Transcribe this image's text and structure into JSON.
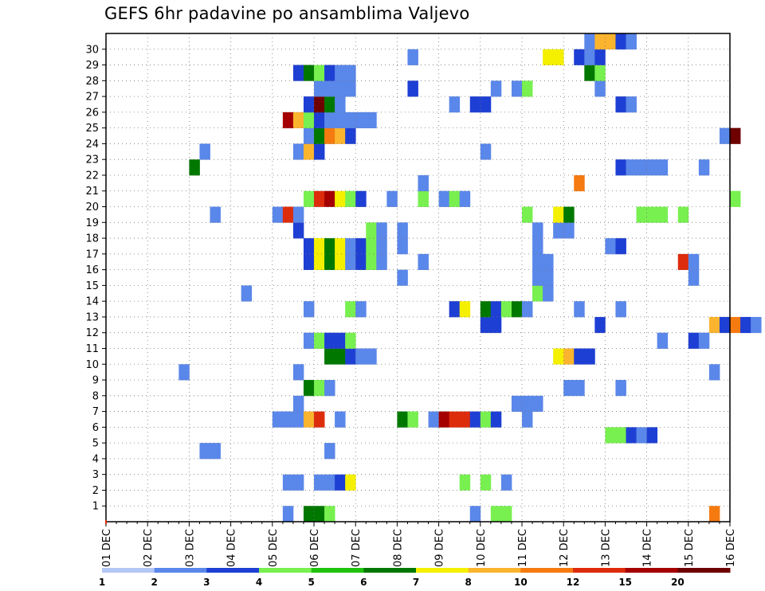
{
  "chart_data": {
    "type": "heatmap",
    "title": "GEFS 6hr padavine po ansamblima Valjevo",
    "xlabel": "",
    "ylabel": "",
    "x_tick_labels": [
      "01 DEC",
      "02 DEC",
      "03 DEC",
      "04 DEC",
      "05 DEC",
      "06 DEC",
      "07 DEC",
      "08 DEC",
      "09 DEC",
      "10 DEC",
      "11 DEC",
      "12 DEC",
      "13 DEC",
      "14 DEC",
      "15 DEC",
      "16 DEC"
    ],
    "y_tick_labels": [
      "1",
      "2",
      "3",
      "4",
      "5",
      "6",
      "7",
      "8",
      "9",
      "10",
      "11",
      "12",
      "13",
      "14",
      "15",
      "16",
      "17",
      "18",
      "19",
      "20",
      "21",
      "22",
      "23",
      "24",
      "25",
      "26",
      "27",
      "28",
      "29",
      "30"
    ],
    "grid": true,
    "legend_position": "bottom",
    "time_axis": {
      "start": "01 DEC",
      "end": "16 DEC",
      "step_hours": 6
    },
    "members": {
      "min": 0,
      "max": 30
    },
    "legend": {
      "thresholds": [
        "1",
        "2",
        "3",
        "4",
        "5",
        "6",
        "7",
        "8",
        "10",
        "12",
        "15",
        "20"
      ],
      "colors": [
        "#b4c7f5",
        "#5a87ea",
        "#1e3fd4",
        "#78f050",
        "#1fc30e",
        "#007800",
        "#f5f000",
        "#fbb42d",
        "#f57a10",
        "#dd2c0c",
        "#a50000",
        "#6e0000"
      ]
    },
    "cells": [
      [
        4.75,
        0,
        5
      ],
      [
        5,
        0,
        5
      ],
      [
        5.25,
        0,
        3
      ],
      [
        8.75,
        0,
        1
      ],
      [
        9.25,
        0,
        3
      ],
      [
        9.5,
        0,
        3
      ],
      [
        14.5,
        0,
        8
      ],
      [
        4.25,
        0,
        1
      ],
      [
        4.25,
        2,
        1
      ],
      [
        4.5,
        2,
        1
      ],
      [
        5,
        2,
        1
      ],
      [
        5.25,
        2,
        1
      ],
      [
        5.5,
        2,
        2
      ],
      [
        5.75,
        2,
        6
      ],
      [
        8.5,
        2,
        3
      ],
      [
        9,
        2,
        3
      ],
      [
        9.5,
        2,
        1
      ],
      [
        5.25,
        4,
        1
      ],
      [
        2.25,
        4,
        1
      ],
      [
        2.5,
        4,
        1
      ],
      [
        12,
        5,
        3
      ],
      [
        12.25,
        5,
        3
      ],
      [
        12.5,
        5,
        2
      ],
      [
        12.75,
        5,
        1
      ],
      [
        13,
        5,
        2
      ],
      [
        4,
        6,
        1
      ],
      [
        4.25,
        6,
        1
      ],
      [
        4.5,
        6,
        1
      ],
      [
        4.75,
        6,
        7
      ],
      [
        5,
        6,
        9
      ],
      [
        5.5,
        6,
        1
      ],
      [
        7,
        6,
        5
      ],
      [
        7.25,
        6,
        3
      ],
      [
        7.75,
        6,
        1
      ],
      [
        8,
        6,
        10
      ],
      [
        8.25,
        6,
        9
      ],
      [
        8.5,
        6,
        9
      ],
      [
        8.75,
        6,
        2
      ],
      [
        9,
        6,
        3
      ],
      [
        9.25,
        6,
        2
      ],
      [
        10,
        6,
        1
      ],
      [
        4.5,
        7,
        1
      ],
      [
        9.75,
        7,
        1
      ],
      [
        10,
        7,
        1
      ],
      [
        10.25,
        7,
        1
      ],
      [
        4.75,
        8,
        5
      ],
      [
        5,
        8,
        3
      ],
      [
        5.25,
        8,
        1
      ],
      [
        11,
        8,
        1
      ],
      [
        11.25,
        8,
        1
      ],
      [
        12.25,
        8,
        1
      ],
      [
        4.5,
        9,
        1
      ],
      [
        14.5,
        9,
        1
      ],
      [
        1.75,
        9,
        1
      ],
      [
        5.25,
        10,
        5
      ],
      [
        5.5,
        10,
        5
      ],
      [
        5.75,
        10,
        2
      ],
      [
        6,
        10,
        1
      ],
      [
        6.25,
        10,
        1
      ],
      [
        10.75,
        10,
        6
      ],
      [
        11,
        10,
        7
      ],
      [
        11.25,
        10,
        2
      ],
      [
        11.5,
        10,
        2
      ],
      [
        4.75,
        11,
        1
      ],
      [
        5,
        11,
        3
      ],
      [
        5.25,
        11,
        2
      ],
      [
        5.5,
        11,
        2
      ],
      [
        5.75,
        11,
        3
      ],
      [
        13.25,
        11,
        1
      ],
      [
        14,
        11,
        2
      ],
      [
        14.25,
        11,
        1
      ],
      [
        9,
        12,
        2
      ],
      [
        9.25,
        12,
        2
      ],
      [
        11.75,
        12,
        2
      ],
      [
        14.5,
        12,
        7
      ],
      [
        14.75,
        12,
        2
      ],
      [
        15,
        12,
        8
      ],
      [
        15.25,
        12,
        2
      ],
      [
        15.5,
        12,
        1
      ],
      [
        4.75,
        13,
        1
      ],
      [
        5.75,
        13,
        3
      ],
      [
        6,
        13,
        1
      ],
      [
        8.25,
        13,
        2
      ],
      [
        8.5,
        13,
        6
      ],
      [
        9,
        13,
        5
      ],
      [
        9.25,
        13,
        2
      ],
      [
        9.5,
        13,
        3
      ],
      [
        9.75,
        13,
        5
      ],
      [
        10,
        13,
        1
      ],
      [
        11.25,
        13,
        1
      ],
      [
        12.25,
        13,
        1
      ],
      [
        3.25,
        14,
        1
      ],
      [
        10.25,
        14,
        3
      ],
      [
        10.5,
        14,
        1
      ],
      [
        7,
        15,
        1
      ],
      [
        10.25,
        15,
        1
      ],
      [
        10.5,
        15,
        1
      ],
      [
        14,
        15,
        1
      ],
      [
        4.75,
        16,
        2
      ],
      [
        5,
        16,
        6
      ],
      [
        5.25,
        16,
        5
      ],
      [
        5.5,
        16,
        6
      ],
      [
        5.75,
        16,
        1
      ],
      [
        6,
        16,
        2
      ],
      [
        6.25,
        16,
        3
      ],
      [
        6.5,
        16,
        1
      ],
      [
        7.5,
        16,
        1
      ],
      [
        10.25,
        16,
        1
      ],
      [
        10.5,
        16,
        1
      ],
      [
        13.75,
        16,
        9
      ],
      [
        14,
        16,
        1
      ],
      [
        4.75,
        17,
        2
      ],
      [
        5,
        17,
        6
      ],
      [
        5.25,
        17,
        5
      ],
      [
        5.5,
        17,
        6
      ],
      [
        5.75,
        17,
        1
      ],
      [
        6,
        17,
        2
      ],
      [
        6.25,
        17,
        3
      ],
      [
        6.5,
        17,
        1
      ],
      [
        7,
        17,
        1
      ],
      [
        10.25,
        17,
        1
      ],
      [
        12,
        17,
        1
      ],
      [
        12.25,
        17,
        2
      ],
      [
        4.5,
        18,
        2
      ],
      [
        6.25,
        18,
        3
      ],
      [
        6.5,
        18,
        1
      ],
      [
        7,
        18,
        1
      ],
      [
        10.25,
        18,
        1
      ],
      [
        10.75,
        18,
        1
      ],
      [
        11,
        18,
        1
      ],
      [
        2.5,
        19,
        1
      ],
      [
        4,
        19,
        1
      ],
      [
        4.25,
        19,
        9
      ],
      [
        4.5,
        19,
        1
      ],
      [
        10,
        19,
        3
      ],
      [
        10.75,
        19,
        6
      ],
      [
        11,
        19,
        5
      ],
      [
        12.75,
        19,
        3
      ],
      [
        13,
        19,
        3
      ],
      [
        13.25,
        19,
        3
      ],
      [
        13.75,
        19,
        3
      ],
      [
        4.75,
        20,
        3
      ],
      [
        5,
        20,
        9
      ],
      [
        5.25,
        20,
        10
      ],
      [
        5.5,
        20,
        6
      ],
      [
        5.75,
        20,
        3
      ],
      [
        6,
        20,
        2
      ],
      [
        6.75,
        20,
        1
      ],
      [
        7.5,
        20,
        3
      ],
      [
        8,
        20,
        1
      ],
      [
        8.25,
        20,
        3
      ],
      [
        8.5,
        20,
        1
      ],
      [
        15,
        20,
        3
      ],
      [
        7.5,
        21,
        1
      ],
      [
        11.25,
        21,
        8
      ],
      [
        2,
        22,
        5
      ],
      [
        12.25,
        22,
        2
      ],
      [
        12.5,
        22,
        1
      ],
      [
        12.75,
        22,
        1
      ],
      [
        13,
        22,
        1
      ],
      [
        13.25,
        22,
        1
      ],
      [
        14.25,
        22,
        1
      ],
      [
        2.25,
        23,
        1
      ],
      [
        4.5,
        23,
        1
      ],
      [
        4.75,
        23,
        7
      ],
      [
        5,
        23,
        2
      ],
      [
        9,
        23,
        1
      ],
      [
        4.75,
        24,
        1
      ],
      [
        5,
        24,
        5
      ],
      [
        5.25,
        24,
        8
      ],
      [
        5.5,
        24,
        7
      ],
      [
        5.75,
        24,
        2
      ],
      [
        14.75,
        24,
        1
      ],
      [
        15,
        24,
        11
      ],
      [
        4.25,
        25,
        10
      ],
      [
        4.5,
        25,
        7
      ],
      [
        4.75,
        25,
        3
      ],
      [
        5,
        25,
        2
      ],
      [
        5.25,
        25,
        1
      ],
      [
        5.5,
        25,
        1
      ],
      [
        5.75,
        25,
        1
      ],
      [
        6,
        25,
        1
      ],
      [
        6.25,
        25,
        1
      ],
      [
        4.75,
        26,
        2
      ],
      [
        5,
        26,
        11
      ],
      [
        5.25,
        26,
        5
      ],
      [
        5.5,
        26,
        1
      ],
      [
        8.25,
        26,
        1
      ],
      [
        8.75,
        26,
        2
      ],
      [
        9,
        26,
        2
      ],
      [
        12.25,
        26,
        2
      ],
      [
        12.5,
        26,
        1
      ],
      [
        5,
        27,
        1
      ],
      [
        5.25,
        27,
        1
      ],
      [
        5.5,
        27,
        1
      ],
      [
        5.75,
        27,
        1
      ],
      [
        7.25,
        27,
        2
      ],
      [
        9.25,
        27,
        1
      ],
      [
        9.75,
        27,
        1
      ],
      [
        10,
        27,
        3
      ],
      [
        11.75,
        27,
        1
      ],
      [
        4.5,
        28,
        2
      ],
      [
        4.75,
        28,
        5
      ],
      [
        5,
        28,
        3
      ],
      [
        5.25,
        28,
        2
      ],
      [
        5.5,
        28,
        1
      ],
      [
        5.75,
        28,
        1
      ],
      [
        11.5,
        28,
        5
      ],
      [
        11.75,
        28,
        3
      ],
      [
        7.25,
        29,
        1
      ],
      [
        10.5,
        29,
        6
      ],
      [
        10.75,
        29,
        6
      ],
      [
        11.25,
        29,
        2
      ],
      [
        11.5,
        29,
        1
      ],
      [
        11.75,
        29,
        2
      ],
      [
        11.5,
        30,
        1
      ],
      [
        11.75,
        30,
        7
      ],
      [
        12,
        30,
        7
      ],
      [
        12.25,
        30,
        2
      ],
      [
        12.5,
        30,
        1
      ]
    ]
  }
}
